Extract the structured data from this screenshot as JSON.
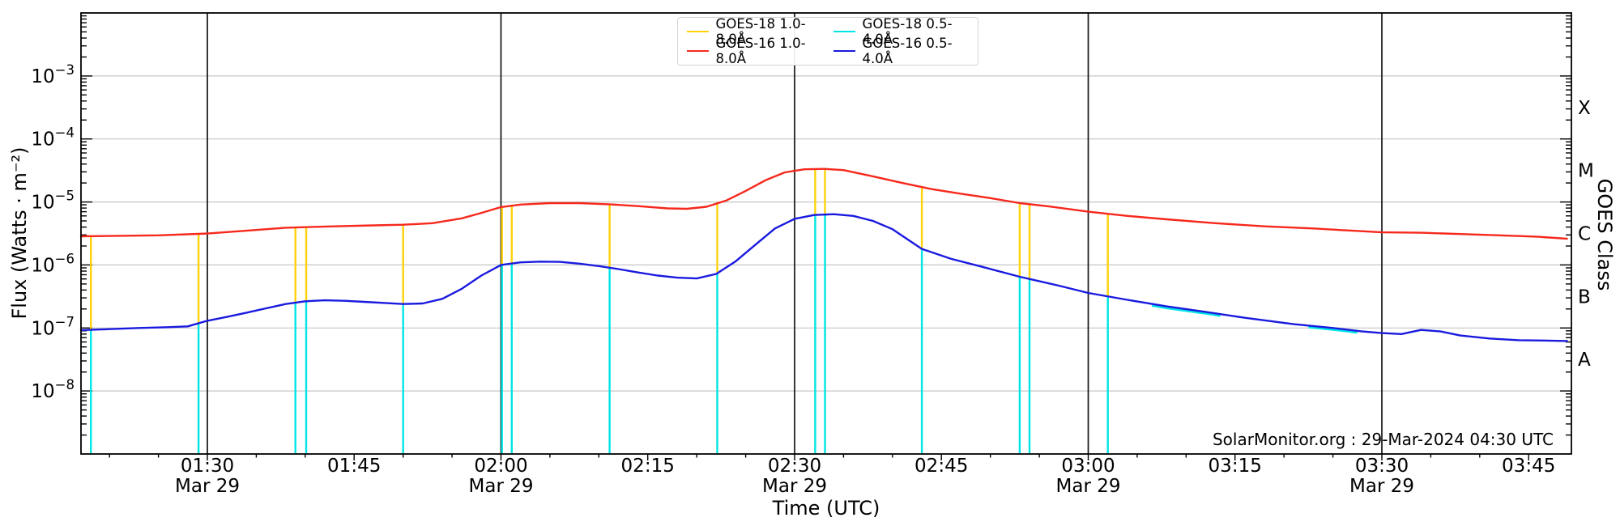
{
  "chart_data": {
    "type": "line",
    "title": "",
    "xlabel": "Time (UTC)",
    "ylabel": "Flux (Watts · m⁻²)",
    "ylabel_right": "GOES Class",
    "annotation": "SolarMonitor.org : 29-Mar-2024 04:30 UTC",
    "x_axis": {
      "unit": "minutes after 01:00 UTC, Mar 29 2024",
      "range_minutes": [
        17.1,
        169.3
      ],
      "major_ticks": [
        {
          "m": 30,
          "label": "01:30",
          "date": "Mar 29"
        },
        {
          "m": 45,
          "label": "01:45",
          "date": ""
        },
        {
          "m": 60,
          "label": "02:00",
          "date": "Mar 29"
        },
        {
          "m": 75,
          "label": "02:15",
          "date": ""
        },
        {
          "m": 90,
          "label": "02:30",
          "date": "Mar 29"
        },
        {
          "m": 105,
          "label": "02:45",
          "date": ""
        },
        {
          "m": 120,
          "label": "03:00",
          "date": "Mar 29"
        },
        {
          "m": 135,
          "label": "03:15",
          "date": ""
        },
        {
          "m": 150,
          "label": "03:30",
          "date": "Mar 29"
        },
        {
          "m": 165,
          "label": "03:45",
          "date": ""
        }
      ],
      "minor_step_minutes": 5,
      "vline_minutes": [
        30,
        60,
        90,
        120,
        150
      ]
    },
    "y_axis": {
      "scale": "log",
      "range": [
        1e-09,
        0.01
      ],
      "tick_exponents": [
        -3,
        -4,
        -5,
        -6,
        -7,
        -8
      ],
      "grid": true,
      "class_labels": [
        {
          "label": "X",
          "log_center": -3.5
        },
        {
          "label": "M",
          "log_center": -4.5
        },
        {
          "label": "C",
          "log_center": -5.5
        },
        {
          "label": "B",
          "log_center": -6.5
        },
        {
          "label": "A",
          "log_center": -7.5
        }
      ]
    },
    "colors": {
      "goes18_long": "#FFD20A",
      "goes16_long": "#F6281C",
      "goes18_short": "#00E5E5",
      "goes16_short": "#1A1ADF",
      "vline": "#141414",
      "grid": "#c6c6c6",
      "spine": "#000000"
    },
    "legend": {
      "position": "top-center",
      "entries": [
        {
          "label": "GOES-18 1.0-8.0Å",
          "color_key": "goes18_long"
        },
        {
          "label": "GOES-16 1.0-8.0Å",
          "color_key": "goes16_long"
        },
        {
          "label": "GOES-18 0.5-4.0Å",
          "color_key": "goes18_short"
        },
        {
          "label": "GOES-16 0.5-4.0Å",
          "color_key": "goes16_short"
        }
      ]
    },
    "series": [
      {
        "name": "GOES-18 1.0-8.0Å",
        "color_key": "goes18_long",
        "style": "dropout-spikes-from-long-to-short",
        "spike_minutes": [
          18.1,
          29.1,
          39.0,
          40.1,
          50.0,
          60.1,
          61.1,
          71.1,
          82.1,
          92.1,
          93.1,
          103.0,
          113.0,
          114.0,
          122.0
        ]
      },
      {
        "name": "GOES-16 1.0-8.0Å",
        "color_key": "goes16_long",
        "style": "curve",
        "points": [
          [
            17,
            2.85e-06
          ],
          [
            21,
            2.9e-06
          ],
          [
            25,
            2.95e-06
          ],
          [
            30,
            3.15e-06
          ],
          [
            34,
            3.5e-06
          ],
          [
            38,
            3.9e-06
          ],
          [
            43,
            4.1e-06
          ],
          [
            47,
            4.25e-06
          ],
          [
            50,
            4.35e-06
          ],
          [
            53,
            4.6e-06
          ],
          [
            56,
            5.5e-06
          ],
          [
            58,
            6.7e-06
          ],
          [
            60,
            8.3e-06
          ],
          [
            62,
            9.1e-06
          ],
          [
            65,
            9.6e-06
          ],
          [
            68,
            9.6e-06
          ],
          [
            71,
            9.2e-06
          ],
          [
            74,
            8.6e-06
          ],
          [
            77,
            7.9e-06
          ],
          [
            79,
            7.8e-06
          ],
          [
            81,
            8.4e-06
          ],
          [
            83,
            1.05e-05
          ],
          [
            85,
            1.5e-05
          ],
          [
            87,
            2.2e-05
          ],
          [
            89,
            2.95e-05
          ],
          [
            91,
            3.3e-05
          ],
          [
            93,
            3.35e-05
          ],
          [
            95,
            3.2e-05
          ],
          [
            98,
            2.55e-05
          ],
          [
            101,
            2e-05
          ],
          [
            104,
            1.6e-05
          ],
          [
            107,
            1.35e-05
          ],
          [
            110,
            1.15e-05
          ],
          [
            113,
            9.6e-06
          ],
          [
            116,
            8.5e-06
          ],
          [
            120,
            7e-06
          ],
          [
            124,
            6e-06
          ],
          [
            128,
            5.3e-06
          ],
          [
            133,
            4.6e-06
          ],
          [
            138,
            4.1e-06
          ],
          [
            143,
            3.8e-06
          ],
          [
            147,
            3.5e-06
          ],
          [
            150,
            3.3e-06
          ],
          [
            154,
            3.25e-06
          ],
          [
            158,
            3.1e-06
          ],
          [
            162,
            2.95e-06
          ],
          [
            166,
            2.8e-06
          ],
          [
            169,
            2.6e-06
          ]
        ]
      },
      {
        "name": "GOES-18 0.5-4.0Å",
        "color_key": "goes18_short",
        "style": "dropout-spikes-from-short-to-bottom",
        "spike_minutes": [
          18.1,
          29.1,
          39.0,
          40.1,
          50.0,
          60.1,
          61.1,
          71.1,
          82.1,
          92.1,
          93.1,
          103.0,
          113.0,
          114.0,
          122.0
        ],
        "visible_segments_minutes": [
          [
            126.5,
            133.5
          ],
          [
            142.5,
            147.5
          ]
        ]
      },
      {
        "name": "GOES-16 0.5-4.0Å",
        "color_key": "goes16_short",
        "style": "curve",
        "points": [
          [
            17,
            9.2e-08
          ],
          [
            20,
            9.6e-08
          ],
          [
            23,
            1e-07
          ],
          [
            26,
            1.03e-07
          ],
          [
            28,
            1.06e-07
          ],
          [
            30,
            1.3e-07
          ],
          [
            32,
            1.5e-07
          ],
          [
            34,
            1.75e-07
          ],
          [
            36,
            2.05e-07
          ],
          [
            38,
            2.4e-07
          ],
          [
            40,
            2.65e-07
          ],
          [
            42,
            2.75e-07
          ],
          [
            44,
            2.7e-07
          ],
          [
            46,
            2.6e-07
          ],
          [
            48,
            2.5e-07
          ],
          [
            50,
            2.4e-07
          ],
          [
            52,
            2.45e-07
          ],
          [
            54,
            2.9e-07
          ],
          [
            56,
            4.2e-07
          ],
          [
            58,
            6.8e-07
          ],
          [
            60,
            1e-06
          ],
          [
            62,
            1.1e-06
          ],
          [
            64,
            1.13e-06
          ],
          [
            66,
            1.12e-06
          ],
          [
            68,
            1.05e-06
          ],
          [
            70,
            9.6e-07
          ],
          [
            72,
            8.6e-07
          ],
          [
            74,
            7.6e-07
          ],
          [
            76,
            6.8e-07
          ],
          [
            78,
            6.3e-07
          ],
          [
            80,
            6.1e-07
          ],
          [
            82,
            7.2e-07
          ],
          [
            84,
            1.15e-06
          ],
          [
            86,
            2.1e-06
          ],
          [
            88,
            3.8e-06
          ],
          [
            90,
            5.4e-06
          ],
          [
            92,
            6.2e-06
          ],
          [
            94,
            6.4e-06
          ],
          [
            96,
            6e-06
          ],
          [
            98,
            5e-06
          ],
          [
            100,
            3.7e-06
          ],
          [
            103,
            1.8e-06
          ],
          [
            106,
            1.25e-06
          ],
          [
            109,
            9.5e-07
          ],
          [
            113,
            6.5e-07
          ],
          [
            117,
            4.7e-07
          ],
          [
            120,
            3.6e-07
          ],
          [
            124,
            2.8e-07
          ],
          [
            128,
            2.2e-07
          ],
          [
            132,
            1.8e-07
          ],
          [
            136,
            1.45e-07
          ],
          [
            141,
            1.15e-07
          ],
          [
            145,
            1e-07
          ],
          [
            148,
            8.8e-08
          ],
          [
            150,
            8.3e-08
          ],
          [
            152,
            8e-08
          ],
          [
            154,
            9.3e-08
          ],
          [
            156,
            8.8e-08
          ],
          [
            158,
            7.6e-08
          ],
          [
            161,
            6.8e-08
          ],
          [
            164,
            6.4e-08
          ],
          [
            167,
            6.3e-08
          ],
          [
            169,
            6.2e-08
          ]
        ]
      }
    ]
  }
}
